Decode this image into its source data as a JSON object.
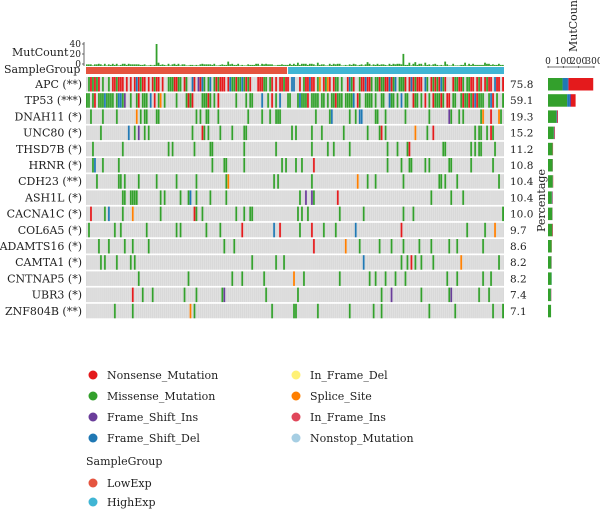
{
  "chart_data": {
    "type": "heatmap",
    "title": "",
    "top_panel": {
      "label": "MutCount",
      "yticks": [
        "40",
        "20",
        "0"
      ],
      "ylim": [
        0,
        40
      ]
    },
    "sample_group_label": "SampleGroup",
    "genes": [
      {
        "name": "APC (**)",
        "percentage": "75.8",
        "counts": {
          "Missense_Mutation": 95,
          "Nonsense_Mutation": 160,
          "Frame_Shift_Del": 35,
          "Frame_Shift_Ins": 5
        }
      },
      {
        "name": "TP53 (***)",
        "percentage": "59.1",
        "counts": {
          "Missense_Mutation": 125,
          "Nonsense_Mutation": 30,
          "Frame_Shift_Del": 18,
          "Frame_Shift_Ins": 7
        }
      },
      {
        "name": "DNAH11 (*)",
        "percentage": "19.3",
        "counts": {
          "Missense_Mutation": 55,
          "Nonsense_Mutation": 4,
          "Frame_Shift_Del": 3,
          "Frame_Shift_Ins": 3
        }
      },
      {
        "name": "UNC80 (*)",
        "percentage": "15.2",
        "counts": {
          "Missense_Mutation": 38,
          "Nonsense_Mutation": 3,
          "Frame_Shift_Del": 2,
          "Frame_Shift_Ins": 2
        }
      },
      {
        "name": "THSD7B (*)",
        "percentage": "11.2",
        "counts": {
          "Missense_Mutation": 30,
          "Nonsense_Mutation": 2,
          "Frame_Shift_Del": 1,
          "Frame_Shift_Ins": 0
        }
      },
      {
        "name": "HRNR (*)",
        "percentage": "10.8",
        "counts": {
          "Missense_Mutation": 30,
          "Nonsense_Mutation": 1,
          "Frame_Shift_Del": 1,
          "Frame_Shift_Ins": 0
        }
      },
      {
        "name": "CDH23 (**)",
        "percentage": "10.4",
        "counts": {
          "Missense_Mutation": 31,
          "Nonsense_Mutation": 2,
          "Frame_Shift_Del": 1,
          "Frame_Shift_Ins": 0
        }
      },
      {
        "name": "ASH1L (*)",
        "percentage": "10.4",
        "counts": {
          "Missense_Mutation": 25,
          "Nonsense_Mutation": 2,
          "Frame_Shift_Del": 3,
          "Frame_Shift_Ins": 1
        }
      },
      {
        "name": "CACNA1C (*)",
        "percentage": "10.0",
        "counts": {
          "Missense_Mutation": 28,
          "Nonsense_Mutation": 1,
          "Frame_Shift_Del": 1,
          "Frame_Shift_Ins": 0
        }
      },
      {
        "name": "COL6A5 (*)",
        "percentage": "9.7",
        "counts": {
          "Missense_Mutation": 28,
          "Nonsense_Mutation": 3,
          "Frame_Shift_Del": 1,
          "Frame_Shift_Ins": 0
        }
      },
      {
        "name": "ADAMTS16 (*)",
        "percentage": "8.6",
        "counts": {
          "Missense_Mutation": 24,
          "Nonsense_Mutation": 1,
          "Frame_Shift_Del": 0,
          "Frame_Shift_Ins": 0
        }
      },
      {
        "name": "CAMTA1 (*)",
        "percentage": "8.2",
        "counts": {
          "Missense_Mutation": 22,
          "Nonsense_Mutation": 1,
          "Frame_Shift_Del": 1,
          "Frame_Shift_Ins": 0
        }
      },
      {
        "name": "CNTNAP5 (*)",
        "percentage": "8.2",
        "counts": {
          "Missense_Mutation": 23,
          "Nonsense_Mutation": 0,
          "Frame_Shift_Del": 1,
          "Frame_Shift_Ins": 0
        }
      },
      {
        "name": "UBR3 (*)",
        "percentage": "7.4",
        "counts": {
          "Missense_Mutation": 19,
          "Nonsense_Mutation": 1,
          "Frame_Shift_Del": 1,
          "Frame_Shift_Ins": 1
        }
      },
      {
        "name": "ZNF804B (**)",
        "percentage": "7.1",
        "counts": {
          "Missense_Mutation": 20,
          "Nonsense_Mutation": 0,
          "Frame_Shift_Del": 0,
          "Frame_Shift_Ins": 0
        }
      }
    ],
    "right_panel": {
      "label": "MutCount",
      "axis_label": "Percentage",
      "xticks": [
        "0",
        "100",
        "200",
        "300"
      ],
      "xlim": [
        0,
        300
      ]
    },
    "legend": {
      "variant_classes": [
        {
          "name": "Nonsense_Mutation",
          "color": "#e41a1c"
        },
        {
          "name": "In_Frame_Del",
          "color": "#fff176"
        },
        {
          "name": "Missense_Mutation",
          "color": "#33a02c"
        },
        {
          "name": "Splice_Site",
          "color": "#ff7f00"
        },
        {
          "name": "Frame_Shift_Ins",
          "color": "#6a3d9a"
        },
        {
          "name": "In_Frame_Ins",
          "color": "#e0475b"
        },
        {
          "name": "Frame_Shift_Del",
          "color": "#1f78b4"
        },
        {
          "name": "Nonstop_Mutation",
          "color": "#a6cee3"
        }
      ],
      "group_title": "SampleGroup",
      "groups": [
        {
          "name": "LowExp",
          "color": "#e5543f"
        },
        {
          "name": "HighExp",
          "color": "#40b5d4"
        }
      ]
    },
    "colors": {
      "empty_cell": "#d9d9d9",
      "mutcount_bar": "#33a02c"
    }
  }
}
